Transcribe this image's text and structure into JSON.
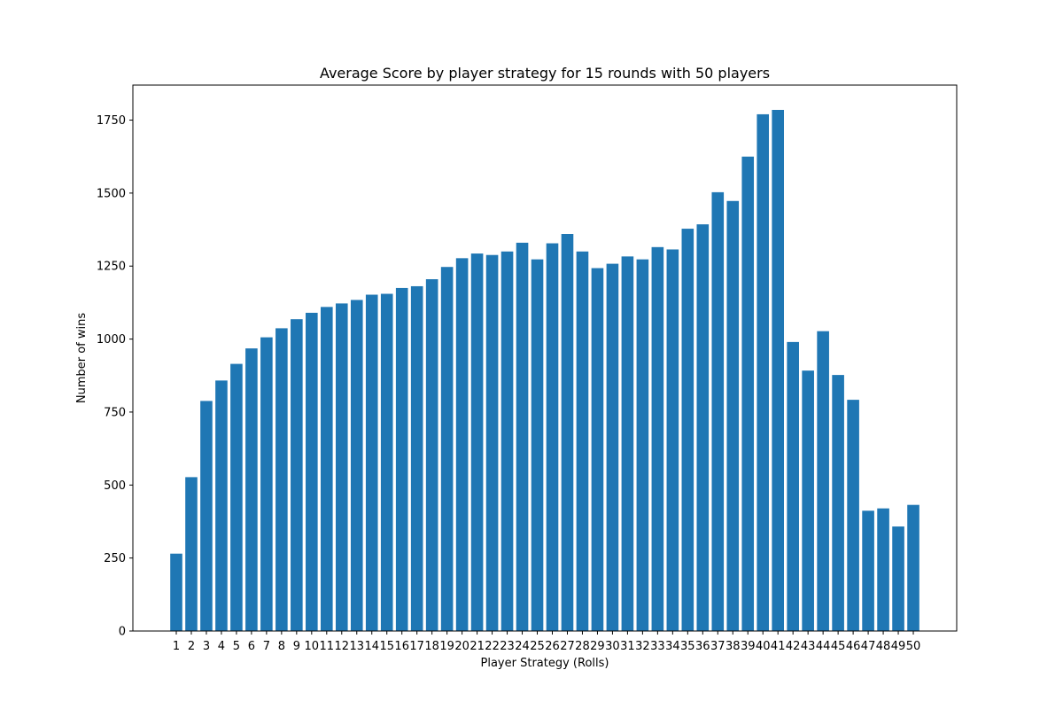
{
  "chart_data": {
    "type": "bar",
    "title": "Average Score by player strategy for 15 rounds with 50 players",
    "xlabel": "Player Strategy (Rolls)",
    "ylabel": "Number of wins",
    "categories": [
      "1",
      "2",
      "3",
      "4",
      "5",
      "6",
      "7",
      "8",
      "9",
      "10",
      "11",
      "12",
      "13",
      "14",
      "15",
      "16",
      "17",
      "18",
      "19",
      "20",
      "21",
      "22",
      "23",
      "24",
      "25",
      "26",
      "27",
      "28",
      "29",
      "30",
      "31",
      "32",
      "33",
      "34",
      "35",
      "36",
      "37",
      "38",
      "39",
      "40",
      "41",
      "42",
      "43",
      "44",
      "45",
      "46",
      "47",
      "48",
      "49",
      "50"
    ],
    "values": [
      265,
      527,
      788,
      858,
      915,
      968,
      1006,
      1037,
      1068,
      1090,
      1110,
      1122,
      1134,
      1152,
      1155,
      1175,
      1181,
      1205,
      1247,
      1277,
      1293,
      1288,
      1300,
      1330,
      1273,
      1328,
      1360,
      1300,
      1243,
      1258,
      1283,
      1273,
      1315,
      1307,
      1378,
      1393,
      1503,
      1473,
      1625,
      1770,
      1785,
      990,
      892,
      1027,
      877,
      792,
      412,
      420,
      358,
      432
    ],
    "yticks": [
      0,
      250,
      500,
      750,
      1000,
      1250,
      1500,
      1750
    ],
    "ylim": [
      0,
      1870
    ],
    "grid": false,
    "legend": "none",
    "colors": {
      "bar": "#1f77b4"
    }
  }
}
